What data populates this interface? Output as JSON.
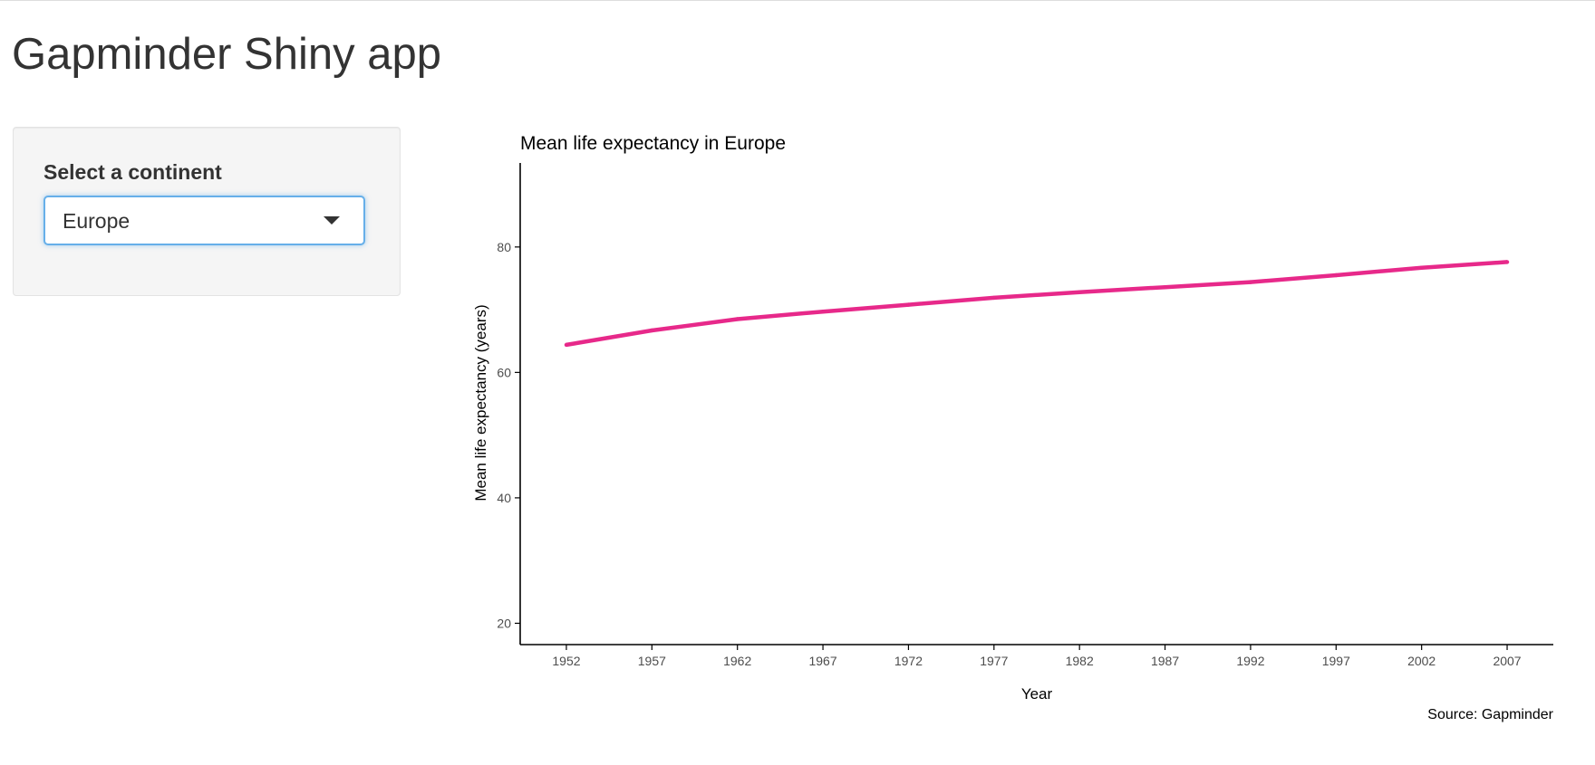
{
  "app": {
    "title": "Gapminder Shiny app"
  },
  "sidebar": {
    "label": "Select a continent",
    "selected": "Europe"
  },
  "colors": {
    "line": "#e7298a",
    "axis": "#000000",
    "tick_text": "#4d4d4d"
  },
  "chart_data": {
    "type": "line",
    "title": "Mean life expectancy in Europe",
    "xlabel": "Year",
    "ylabel": "Mean life expectancy (years)",
    "caption": "Source: Gapminder",
    "x": [
      1952,
      1957,
      1962,
      1967,
      1972,
      1977,
      1982,
      1987,
      1992,
      1997,
      2002,
      2007
    ],
    "values": [
      64.4,
      66.7,
      68.5,
      69.7,
      70.8,
      71.9,
      72.8,
      73.6,
      74.4,
      75.5,
      76.7,
      77.6
    ],
    "xticks": [
      "1952",
      "1957",
      "1962",
      "1967",
      "1972",
      "1977",
      "1982",
      "1987",
      "1992",
      "1997",
      "2002",
      "2007"
    ],
    "yticks": [
      20,
      40,
      60,
      80
    ],
    "xlim": [
      1949.3,
      2009.7
    ],
    "ylim": [
      16.6,
      93.4
    ],
    "grid": false,
    "legend": "none"
  }
}
